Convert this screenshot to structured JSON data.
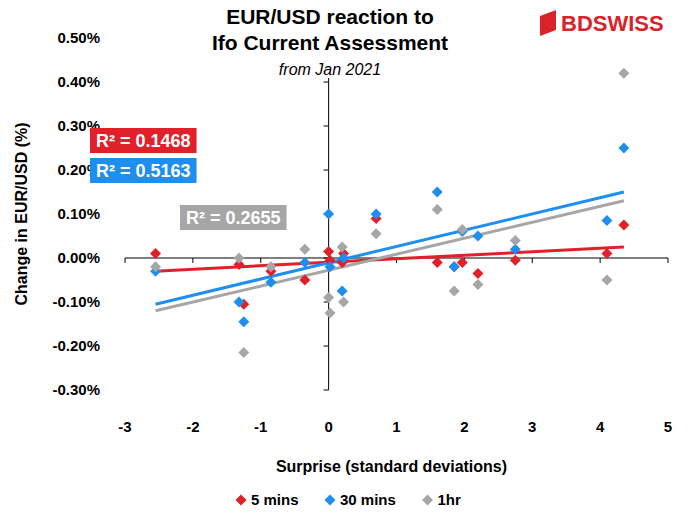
{
  "chart_data": {
    "type": "scatter",
    "title": [
      "EUR/USD reaction to",
      "Ifo Current Assessment"
    ],
    "subtitle": "from Jan 2021",
    "logo": "BDSWISS",
    "x_label": "Surprise (standard deviations)",
    "y_label": "Change in EUR/USD (%)",
    "xlim": [
      -3,
      5
    ],
    "xticks": [
      -3,
      -2,
      -1,
      0,
      1,
      2,
      3,
      4,
      5
    ],
    "ylim": [
      -0.3,
      0.5
    ],
    "yticks": [
      {
        "value": -0.3,
        "label": "-0.30%"
      },
      {
        "value": -0.2,
        "label": "-0.20%"
      },
      {
        "value": -0.1,
        "label": "-0.10%"
      },
      {
        "value": 0,
        "label": "0.00%"
      },
      {
        "value": 0.1,
        "label": "0.10%"
      },
      {
        "value": 0.2,
        "label": "0.20%"
      },
      {
        "value": 0.3,
        "label": "0.30%"
      },
      {
        "value": 0.4,
        "label": "0.40%"
      },
      {
        "value": 0.5,
        "label": "0.50%"
      }
    ],
    "grid": false,
    "legend": "bottom",
    "x": [
      -2.55,
      -1.32,
      -1.25,
      -0.85,
      -0.35,
      0,
      0.02,
      0.2,
      0.22,
      0.7,
      1.6,
      1.85,
      1.97,
      2.2,
      2.75,
      4.1,
      4.35
    ],
    "series": [
      {
        "name": "5 mins",
        "color": "#e0202a",
        "marker": "diamond",
        "values": [
          0.01,
          -0.015,
          -0.105,
          -0.03,
          -0.05,
          0.015,
          -0.005,
          -0.01,
          0.01,
          0.09,
          -0.01,
          -0.02,
          -0.01,
          -0.035,
          -0.005,
          0.01,
          0.075
        ],
        "trendline": {
          "x": [
            -2.55,
            4.35
          ],
          "values": [
            -0.03,
            0.025
          ],
          "label": "R² = 0.1468"
        }
      },
      {
        "name": "30 mins",
        "color": "#1e8ff0",
        "marker": "diamond",
        "values": [
          -0.03,
          -0.1,
          -0.145,
          -0.055,
          -0.01,
          0.1,
          -0.02,
          -0.075,
          0.0,
          0.1,
          0.15,
          -0.02,
          0.06,
          0.05,
          0.02,
          0.085,
          0.25
        ],
        "trendline": {
          "x": [
            -2.55,
            4.35
          ],
          "values": [
            -0.105,
            0.15
          ],
          "label": "R² = 0.5163"
        }
      },
      {
        "name": "1hr",
        "color": "#a6a6a6",
        "marker": "diamond",
        "values": [
          -0.02,
          0.0,
          -0.215,
          -0.02,
          0.02,
          -0.09,
          -0.125,
          0.025,
          -0.1,
          0.055,
          0.11,
          -0.075,
          0.065,
          -0.06,
          0.04,
          -0.05,
          0.42
        ],
        "trendline": {
          "x": [
            -2.55,
            4.35
          ],
          "values": [
            -0.12,
            0.13
          ],
          "label": "R² = 0.2655"
        }
      }
    ]
  }
}
